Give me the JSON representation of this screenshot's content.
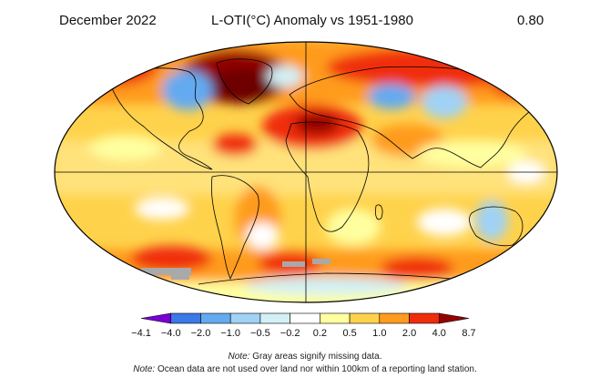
{
  "header": {
    "period": "December 2022",
    "title": "L-OTI(°C) Anomaly vs 1951-1980",
    "global_mean": "0.80"
  },
  "legend": {
    "ticks": [
      "−4.1",
      "−4.0",
      "−2.0",
      "−1.0",
      "−0.5",
      "−0.2",
      "0.2",
      "0.5",
      "1.0",
      "2.0",
      "4.0",
      "8.7"
    ],
    "colors": [
      "#7a00d6",
      "#3c78e6",
      "#64aaf0",
      "#a0d2f5",
      "#d2f0f5",
      "#ffffff",
      "#ffffa0",
      "#ffd24b",
      "#ff9b1e",
      "#f02d0a",
      "#960000"
    ]
  },
  "notes": {
    "note1_label": "Note:",
    "note1_text": " Gray areas signify missing data.",
    "note2_label": "Note:",
    "note2_text": " Ocean data are not used over land nor within 100km of a reporting land station."
  },
  "map": {
    "projection": "Robinson",
    "missing_data_color": "#a9a9a9"
  }
}
